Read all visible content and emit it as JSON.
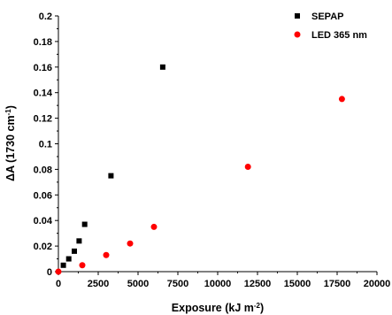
{
  "chart_data": {
    "type": "scatter",
    "xlabel": {
      "base": "Exposure (kJ m",
      "sup": "-2",
      "close": ")"
    },
    "ylabel": {
      "base": "ΔA (1730 cm",
      "sup": "-1",
      "close": ")"
    },
    "xlim": [
      0,
      20000
    ],
    "ylim": [
      0,
      0.2
    ],
    "xticks": [
      0,
      2500,
      5000,
      7500,
      10000,
      12500,
      15000,
      17500,
      20000
    ],
    "xtick_labels": [
      "0",
      "2500",
      "5000",
      "7500",
      "10000",
      "12500",
      "15000",
      "17500",
      "20000"
    ],
    "yticks": [
      0,
      0.02,
      0.04,
      0.06,
      0.08,
      0.1,
      0.12,
      0.14,
      0.16,
      0.18,
      0.2
    ],
    "ytick_labels": [
      "0",
      "0.02",
      "0.04",
      "0.06",
      "0.08",
      "0.1",
      "0.12",
      "0.14",
      "0.16",
      "0.18",
      "0.2"
    ],
    "grid": false,
    "legend_position": "top-right",
    "series": [
      {
        "name": "SEPAP",
        "marker": "square",
        "color": "#000000",
        "points": [
          [
            310,
            0.005
          ],
          [
            650,
            0.01
          ],
          [
            1000,
            0.016
          ],
          [
            1300,
            0.024
          ],
          [
            1650,
            0.037
          ],
          [
            3300,
            0.075
          ],
          [
            6550,
            0.16
          ]
        ]
      },
      {
        "name": "LED 365 nm",
        "marker": "circle",
        "color": "#ff0000",
        "points": [
          [
            0,
            0.0
          ],
          [
            1500,
            0.005
          ],
          [
            3000,
            0.013
          ],
          [
            4500,
            0.022
          ],
          [
            6000,
            0.035
          ],
          [
            11900,
            0.082
          ],
          [
            17800,
            0.135
          ]
        ]
      }
    ]
  }
}
